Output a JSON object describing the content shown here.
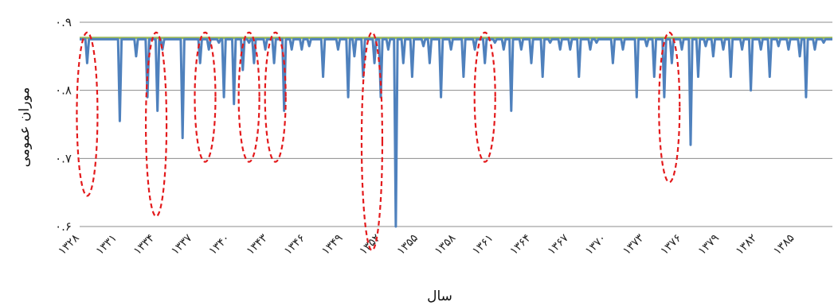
{
  "chart_data": {
    "type": "line",
    "xlabel": "سال",
    "ylabel": "موران عمومی",
    "ylim": [
      0.6,
      0.9
    ],
    "yticks": [
      0.6,
      0.7,
      0.8,
      0.9
    ],
    "ytick_labels": [
      "۰.۶",
      "۰.۷",
      "۰.۸",
      "۰.۹"
    ],
    "xticks": [
      1328,
      1331,
      1334,
      1337,
      1340,
      1343,
      1346,
      1349,
      1352,
      1355,
      1358,
      1361,
      1364,
      1367,
      1370,
      1373,
      1376,
      1379,
      1382,
      1385
    ],
    "xtick_labels": [
      "۱۳۲۸",
      "۱۳۳۱",
      "۱۳۳۴",
      "۱۳۳۷",
      "۱۳۴۰",
      "۱۳۴۳",
      "۱۳۴۶",
      "۱۳۴۹",
      "۱۳۵۲",
      "۱۳۵۵",
      "۱۳۵۸",
      "۱۳۶۱",
      "۱۳۶۴",
      "۱۳۶۷",
      "۱۳۷۰",
      "۱۳۷۳",
      "۱۳۷۶",
      "۱۳۷۹",
      "۱۳۸۲",
      "۱۳۸۵"
    ],
    "xlim": [
      1328,
      1388
    ],
    "grid": "horizontal",
    "series": [
      {
        "color": "#4f81bd",
        "baseline": 0.875,
        "dips": [
          [
            1328.6,
            0.84
          ],
          [
            1331.2,
            0.755
          ],
          [
            1332.5,
            0.85
          ],
          [
            1333.4,
            0.79
          ],
          [
            1334.2,
            0.77
          ],
          [
            1334.6,
            0.86
          ],
          [
            1336.2,
            0.73
          ],
          [
            1337.6,
            0.84
          ],
          [
            1338.3,
            0.86
          ],
          [
            1339.1,
            0.87
          ],
          [
            1339.5,
            0.79
          ],
          [
            1340.3,
            0.78
          ],
          [
            1341.0,
            0.83
          ],
          [
            1341.5,
            0.87
          ],
          [
            1341.9,
            0.84
          ],
          [
            1342.8,
            0.86
          ],
          [
            1343.5,
            0.84
          ],
          [
            1344.3,
            0.77
          ],
          [
            1344.9,
            0.86
          ],
          [
            1345.7,
            0.86
          ],
          [
            1346.3,
            0.865
          ],
          [
            1347.4,
            0.82
          ],
          [
            1348.6,
            0.86
          ],
          [
            1349.4,
            0.79
          ],
          [
            1349.9,
            0.85
          ],
          [
            1350.6,
            0.82
          ],
          [
            1351.5,
            0.84
          ],
          [
            1352.0,
            0.79
          ],
          [
            1352.6,
            0.86
          ],
          [
            1353.2,
            0.6
          ],
          [
            1353.8,
            0.84
          ],
          [
            1354.5,
            0.82
          ],
          [
            1355.4,
            0.865
          ],
          [
            1355.9,
            0.84
          ],
          [
            1356.8,
            0.79
          ],
          [
            1357.6,
            0.86
          ],
          [
            1358.6,
            0.82
          ],
          [
            1359.5,
            0.86
          ],
          [
            1360.3,
            0.84
          ],
          [
            1361.1,
            0.87
          ],
          [
            1361.8,
            0.86
          ],
          [
            1362.4,
            0.77
          ],
          [
            1363.2,
            0.86
          ],
          [
            1364.0,
            0.84
          ],
          [
            1364.9,
            0.82
          ],
          [
            1365.5,
            0.87
          ],
          [
            1366.3,
            0.86
          ],
          [
            1367.1,
            0.86
          ],
          [
            1367.8,
            0.82
          ],
          [
            1368.7,
            0.86
          ],
          [
            1369.2,
            0.87
          ],
          [
            1370.5,
            0.84
          ],
          [
            1371.3,
            0.86
          ],
          [
            1372.4,
            0.79
          ],
          [
            1373.2,
            0.865
          ],
          [
            1373.8,
            0.82
          ],
          [
            1374.6,
            0.79
          ],
          [
            1375.2,
            0.84
          ],
          [
            1376.0,
            0.86
          ],
          [
            1376.7,
            0.72
          ],
          [
            1377.3,
            0.82
          ],
          [
            1377.9,
            0.865
          ],
          [
            1378.5,
            0.85
          ],
          [
            1379.3,
            0.86
          ],
          [
            1379.9,
            0.82
          ],
          [
            1380.8,
            0.86
          ],
          [
            1381.5,
            0.8
          ],
          [
            1382.3,
            0.86
          ],
          [
            1383.0,
            0.82
          ],
          [
            1383.7,
            0.865
          ],
          [
            1384.5,
            0.86
          ],
          [
            1385.4,
            0.85
          ],
          [
            1385.9,
            0.79
          ],
          [
            1386.6,
            0.86
          ],
          [
            1387.3,
            0.87
          ]
        ]
      }
    ],
    "reference_line": {
      "value": 0.877,
      "color": "#9bbb59"
    },
    "annotations": {
      "type": "ellipse",
      "color": "#e31a1c",
      "style": "dashed",
      "items": [
        {
          "x": 1328.6,
          "y_top": 0.885,
          "y_bottom": 0.645
        },
        {
          "x": 1334.1,
          "y_top": 0.885,
          "y_bottom": 0.615
        },
        {
          "x": 1338.0,
          "y_top": 0.885,
          "y_bottom": 0.695
        },
        {
          "x": 1341.5,
          "y_top": 0.885,
          "y_bottom": 0.695
        },
        {
          "x": 1343.6,
          "y_top": 0.885,
          "y_bottom": 0.695
        },
        {
          "x": 1351.3,
          "y_top": 0.885,
          "y_bottom": 0.565
        },
        {
          "x": 1360.3,
          "y_top": 0.885,
          "y_bottom": 0.695
        },
        {
          "x": 1375.0,
          "y_top": 0.885,
          "y_bottom": 0.665
        }
      ]
    }
  }
}
